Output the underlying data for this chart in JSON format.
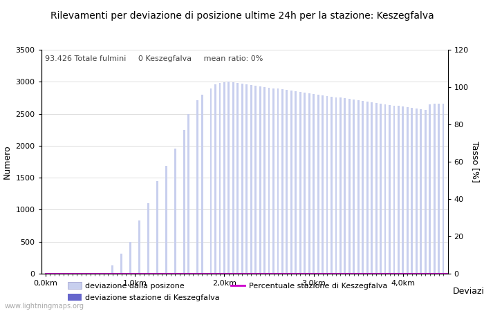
{
  "title": "Rilevamenti per deviazione di posizione ultime 24h per la stazione: Keszegfalva",
  "subtitle": "93.426 Totale fulmini     0 Keszegfalva     mean ratio: 0%",
  "xlabel": "Deviazioni",
  "ylabel_left": "Numero",
  "ylabel_right": "Tasso [%]",
  "ylim_left": [
    0,
    3500
  ],
  "ylim_right": [
    0,
    120
  ],
  "yticks_left": [
    0,
    500,
    1000,
    1500,
    2000,
    2500,
    3000,
    3500
  ],
  "yticks_right": [
    0,
    20,
    40,
    60,
    80,
    100,
    120
  ],
  "xtick_labels": [
    "0,0km",
    "1,0km",
    "2,0km",
    "3,0km",
    "4,0km"
  ],
  "background_color": "#ffffff",
  "bar_color_light": "#c8cfee",
  "bar_color_dark": "#6666cc",
  "line_color": "#cc00cc",
  "watermark": "www.lightningmaps.org",
  "bar_values": [
    5,
    2,
    1,
    1,
    1,
    1,
    1,
    1,
    1,
    1,
    1,
    1,
    1,
    1,
    1,
    130,
    1,
    310,
    1,
    500,
    1,
    830,
    1,
    1100,
    1,
    1450,
    1,
    1680,
    1,
    1960,
    1,
    2250,
    2500,
    1,
    2710,
    2800,
    1,
    2900,
    2960,
    2980,
    2990,
    3000,
    2990,
    2980,
    2970,
    2960,
    2950,
    2940,
    2930,
    2920,
    2910,
    2900,
    2890,
    2880,
    2870,
    2860,
    2850,
    2840,
    2830,
    2820,
    2810,
    2800,
    2790,
    2780,
    2770,
    2760,
    2750,
    2740,
    2730,
    2720,
    2710,
    2700,
    2690,
    2680,
    2670,
    2660,
    2650,
    2640,
    2630,
    2620,
    2610,
    2600,
    2590,
    2580,
    2570,
    2560,
    2650,
    2660,
    2660,
    2660
  ],
  "mean_ratio": 0,
  "n_total": 90,
  "km_per_bar": 0.05,
  "x_max_km": 4.5
}
